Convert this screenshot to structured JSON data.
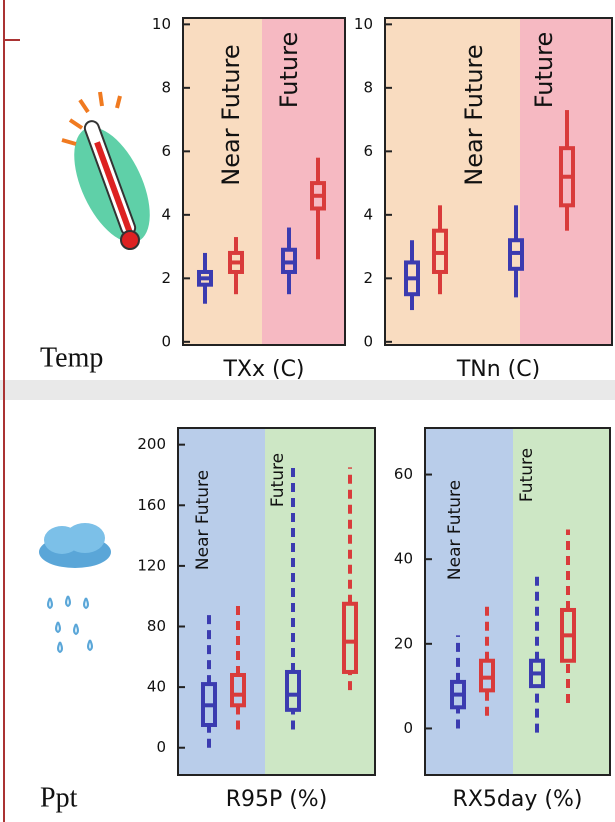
{
  "row_labels": [
    "Temp",
    "Ppt"
  ],
  "chart_data": [
    {
      "type": "box",
      "x_label": "TXx (C)",
      "categories": [
        "Near Future",
        "Future"
      ],
      "category_colors": [
        "#f9dcc0",
        "#f6b9c2"
      ],
      "ylim": [
        -0.1,
        10.2
      ],
      "yticks": [
        0,
        2,
        4,
        6,
        8,
        10
      ],
      "dashed": false,
      "series": [
        {
          "color": "#3b3bb0",
          "values": [
            {
              "min": 1.2,
              "q1": 1.8,
              "median": 2.0,
              "q3": 2.2,
              "max": 2.8
            },
            {
              "min": 1.5,
              "q1": 2.2,
              "median": 2.5,
              "q3": 2.9,
              "max": 3.6
            }
          ]
        },
        {
          "color": "#d93b3b",
          "values": [
            {
              "min": 1.5,
              "q1": 2.2,
              "median": 2.5,
              "q3": 2.8,
              "max": 3.3
            },
            {
              "min": 2.6,
              "q1": 4.2,
              "median": 4.6,
              "q3": 5.0,
              "max": 5.8
            }
          ]
        }
      ]
    },
    {
      "type": "box",
      "x_label": "TNn (C)",
      "categories": [
        "Near Future",
        "Future"
      ],
      "category_colors": [
        "#f9dcc0",
        "#f6b9c2"
      ],
      "ylim": [
        -0.1,
        10.2
      ],
      "yticks": [
        0,
        2,
        4,
        6,
        8,
        10
      ],
      "dashed": false,
      "series": [
        {
          "color": "#3b3bb0",
          "values": [
            {
              "min": 1.0,
              "q1": 1.5,
              "median": 2.0,
              "q3": 2.5,
              "max": 3.2
            },
            {
              "min": 1.4,
              "q1": 2.3,
              "median": 2.8,
              "q3": 3.2,
              "max": 4.3
            }
          ]
        },
        {
          "color": "#d93b3b",
          "values": [
            {
              "min": 1.5,
              "q1": 2.2,
              "median": 2.8,
              "q3": 3.5,
              "max": 4.3
            },
            {
              "min": 3.5,
              "q1": 4.3,
              "median": 5.2,
              "q3": 6.1,
              "max": 7.3
            }
          ]
        }
      ]
    },
    {
      "type": "box",
      "x_label": "R95P (%)",
      "categories": [
        "Near Future",
        "Future"
      ],
      "category_colors": [
        "#b9cdea",
        "#cde7c5"
      ],
      "ylim": [
        -18,
        211
      ],
      "yticks": [
        0,
        40,
        80,
        120,
        160,
        200
      ],
      "dashed": true,
      "series": [
        {
          "color": "#3b3bb0",
          "values": [
            {
              "min": 0,
              "q1": 15,
              "median": 28,
              "q3": 42,
              "max": 90
            },
            {
              "min": 12,
              "q1": 25,
              "median": 35,
              "q3": 50,
              "max": 185
            }
          ]
        },
        {
          "color": "#d93b3b",
          "values": [
            {
              "min": 12,
              "q1": 28,
              "median": 35,
              "q3": 48,
              "max": 95
            },
            {
              "min": 38,
              "q1": 50,
              "median": 70,
              "q3": 95,
              "max": 185
            }
          ]
        }
      ]
    },
    {
      "type": "box",
      "x_label": "RX5day (%)",
      "categories": [
        "Near Future",
        "Future"
      ],
      "category_colors": [
        "#b9cdea",
        "#cde7c5"
      ],
      "ylim": [
        -11,
        71
      ],
      "yticks": [
        0,
        20,
        40,
        60
      ],
      "dashed": true,
      "series": [
        {
          "color": "#3b3bb0",
          "values": [
            {
              "min": 0,
              "q1": 5,
              "median": 8,
              "q3": 11,
              "max": 22
            },
            {
              "min": -1,
              "q1": 10,
              "median": 13,
              "q3": 16,
              "max": 36
            }
          ]
        },
        {
          "color": "#d93b3b",
          "values": [
            {
              "min": 3,
              "q1": 9,
              "median": 12,
              "q3": 16,
              "max": 29
            },
            {
              "min": 6,
              "q1": 16,
              "median": 22,
              "q3": 28,
              "max": 47
            }
          ]
        }
      ]
    }
  ]
}
